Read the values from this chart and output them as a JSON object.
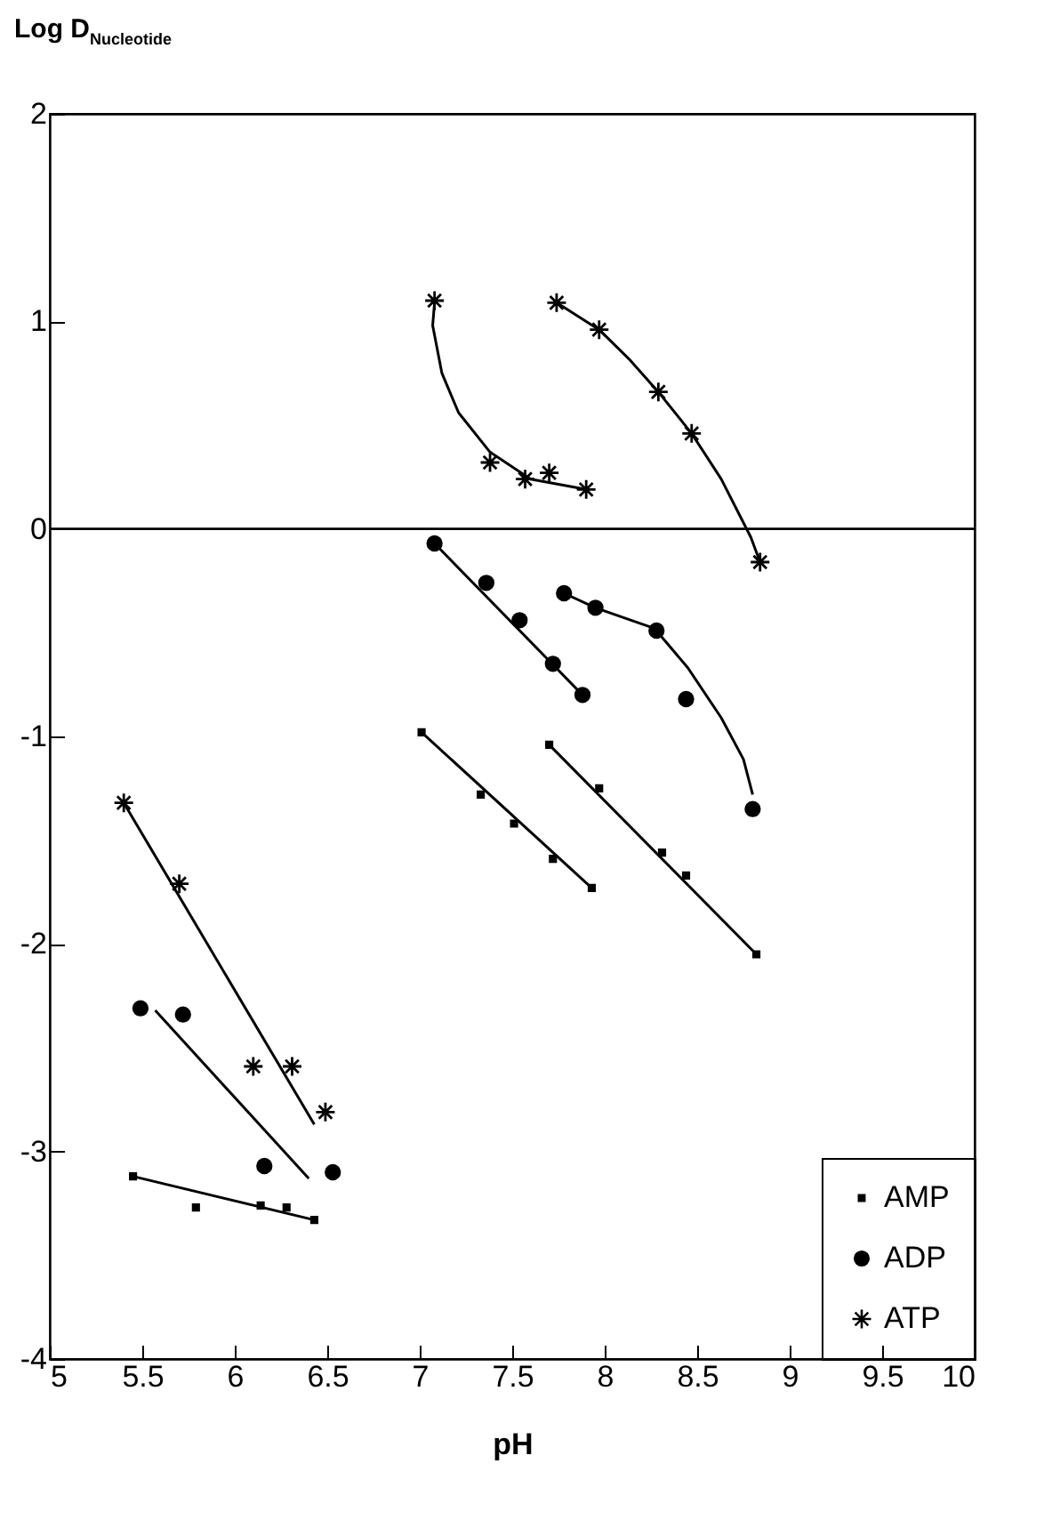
{
  "chart_data": {
    "type": "scatter",
    "xlabel": "pH",
    "ylabel": "Log D$_{Nucleotide}$",
    "xlim": [
      5,
      10
    ],
    "xticks": [
      5,
      5.5,
      6,
      6.5,
      7,
      7.5,
      8,
      8.5,
      9,
      9.5,
      10
    ],
    "ylim": [
      -4,
      2
    ],
    "yticks": [
      -4,
      -3,
      -2,
      -1,
      0,
      1,
      2
    ],
    "grid": false,
    "legend": "bottom right",
    "line_style": "solid",
    "ref_lines": [
      {
        "axis": "y",
        "value": 0,
        "color": "#000000"
      }
    ],
    "series": [
      {
        "name": "AMP",
        "marker": "square",
        "color": "#000000",
        "x": [
          5.45,
          5.79,
          6.14,
          6.28,
          6.43,
          7.01,
          7.33,
          7.51,
          7.72,
          7.93,
          7.7,
          7.97,
          8.31,
          8.44,
          8.82
        ],
        "values": [
          -3.12,
          -3.27,
          -3.26,
          -3.27,
          -3.33,
          -0.98,
          -1.28,
          -1.42,
          -1.59,
          -1.73,
          -1.04,
          -1.25,
          -1.56,
          -1.67,
          -2.05
        ]
      },
      {
        "name": "ADP",
        "marker": "circle",
        "color": "#000000",
        "x": [
          5.49,
          5.72,
          6.16,
          6.53,
          7.08,
          7.36,
          7.54,
          7.72,
          7.88,
          7.78,
          7.95,
          8.28,
          8.44,
          8.8
        ],
        "values": [
          -2.31,
          -2.34,
          -3.07,
          -3.1,
          -0.07,
          -0.26,
          -0.44,
          -0.65,
          -0.8,
          -0.31,
          -0.38,
          -0.49,
          -0.82,
          -1.35
        ]
      },
      {
        "name": "ATP",
        "marker": "cross",
        "color": "#000000",
        "x": [
          5.4,
          5.7,
          6.1,
          6.31,
          6.49,
          7.08,
          7.38,
          7.57,
          7.7,
          7.9,
          7.74,
          7.97,
          8.29,
          8.47,
          8.84
        ],
        "values": [
          -1.32,
          -1.71,
          -2.59,
          -2.59,
          -2.81,
          1.1,
          0.32,
          0.24,
          0.27,
          0.19,
          1.09,
          0.96,
          0.66,
          0.46,
          -0.16
        ]
      },
      {
        "type": "line",
        "color": "#000000",
        "x": [
          5.45,
          6.43
        ],
        "values": [
          -3.12,
          -3.33
        ]
      },
      {
        "type": "line",
        "color": "#000000",
        "x": [
          5.57,
          6.4
        ],
        "values": [
          -2.32,
          -3.13
        ]
      },
      {
        "type": "line",
        "color": "#000000",
        "x": [
          5.4,
          6.43
        ],
        "values": [
          -1.32,
          -2.87
        ]
      },
      {
        "type": "line",
        "color": "#000000",
        "x": [
          7.01,
          7.93
        ],
        "values": [
          -0.98,
          -1.73
        ]
      },
      {
        "type": "line",
        "color": "#000000",
        "x": [
          7.7,
          8.82
        ],
        "values": [
          -1.04,
          -2.05
        ]
      },
      {
        "type": "line",
        "color": "#000000",
        "x": [
          7.08,
          7.88
        ],
        "values": [
          -0.07,
          -0.8
        ]
      },
      {
        "type": "line",
        "color": "#000000",
        "x": [
          7.78,
          7.95,
          8.27,
          8.45,
          8.63,
          8.75,
          8.8
        ],
        "values": [
          -0.31,
          -0.38,
          -0.48,
          -0.67,
          -0.91,
          -1.11,
          -1.28
        ]
      },
      {
        "type": "line",
        "color": "#000000",
        "x": [
          7.08,
          7.07,
          7.12,
          7.21,
          7.38,
          7.6,
          7.9
        ],
        "values": [
          1.09,
          0.98,
          0.75,
          0.56,
          0.37,
          0.24,
          0.19
        ]
      },
      {
        "type": "line",
        "color": "#000000",
        "x": [
          7.74,
          7.97,
          8.13,
          8.29,
          8.47,
          8.63,
          8.79,
          8.84
        ],
        "values": [
          1.09,
          0.96,
          0.82,
          0.66,
          0.46,
          0.24,
          -0.04,
          -0.16
        ]
      }
    ]
  }
}
